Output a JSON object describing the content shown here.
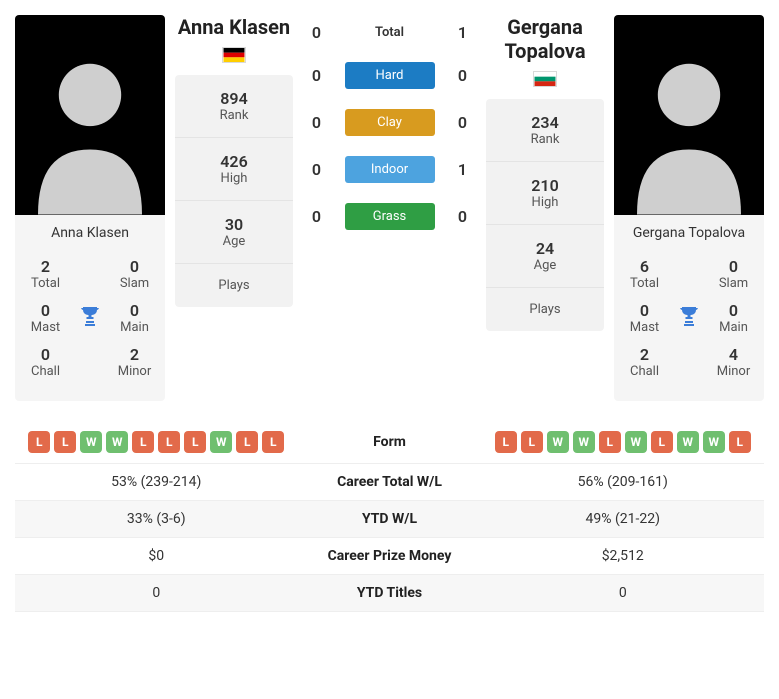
{
  "player1": {
    "name": "Anna Klasen",
    "flag": "germany",
    "rank": "894",
    "high": "426",
    "age": "30",
    "plays": "",
    "titles": {
      "total": "2",
      "slam": "0",
      "mast": "0",
      "main": "0",
      "chall": "0",
      "minor": "2"
    }
  },
  "player2": {
    "name": "Gergana Topalova",
    "flag": "bulgaria",
    "rank": "234",
    "high": "210",
    "age": "24",
    "plays": "",
    "titles": {
      "total": "6",
      "slam": "0",
      "mast": "0",
      "main": "0",
      "chall": "2",
      "minor": "4"
    }
  },
  "h2h": {
    "total_label": "Total",
    "total_p1": "0",
    "total_p2": "1",
    "surfaces": [
      {
        "label": "Hard",
        "class": "pill-hard",
        "p1": "0",
        "p2": "0"
      },
      {
        "label": "Clay",
        "class": "pill-clay",
        "p1": "0",
        "p2": "0"
      },
      {
        "label": "Indoor",
        "class": "pill-indoor",
        "p1": "0",
        "p2": "1"
      },
      {
        "label": "Grass",
        "class": "pill-grass",
        "p1": "0",
        "p2": "0"
      }
    ]
  },
  "labels": {
    "rank": "Rank",
    "high": "High",
    "age": "Age",
    "plays": "Plays",
    "total": "Total",
    "slam": "Slam",
    "mast": "Mast",
    "main": "Main",
    "chall": "Chall",
    "minor": "Minor"
  },
  "comparison": {
    "form_label": "Form",
    "form_p1": [
      "L",
      "L",
      "W",
      "W",
      "L",
      "L",
      "L",
      "W",
      "L",
      "L"
    ],
    "form_p2": [
      "L",
      "L",
      "W",
      "W",
      "L",
      "W",
      "L",
      "W",
      "W",
      "L"
    ],
    "rows": [
      {
        "label": "Career Total W/L",
        "p1": "53% (239-214)",
        "p2": "56% (209-161)"
      },
      {
        "label": "YTD W/L",
        "p1": "33% (3-6)",
        "p2": "49% (21-22)"
      },
      {
        "label": "Career Prize Money",
        "p1": "$0",
        "p2": "$2,512"
      },
      {
        "label": "YTD Titles",
        "p1": "0",
        "p2": "0"
      }
    ]
  },
  "colors": {
    "win": "#6fbf6f",
    "loss": "#e26a4a",
    "hard": "#1c7cc4",
    "clay": "#d89b1f",
    "indoor": "#4da3df",
    "grass": "#2f9e44",
    "trophy": "#3b7dd8"
  }
}
